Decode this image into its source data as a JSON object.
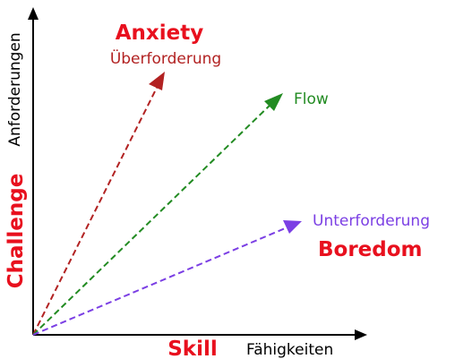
{
  "axes": {
    "x_label_en": "Skill",
    "x_label_de": "Fähigkeiten",
    "y_label_en": "Challenge",
    "y_label_de": "Anforderungen"
  },
  "arrows": [
    {
      "id": "anxiety",
      "label_en": "Anxiety",
      "label_de": "Überforderung",
      "color": "#b22222"
    },
    {
      "id": "flow",
      "label_de": "Flow",
      "color": "#228b22"
    },
    {
      "id": "boredom",
      "label_en": "Boredom",
      "label_de": "Unterforderung",
      "color": "#7b3fe4"
    }
  ],
  "colors": {
    "accent_red": "#e8101e",
    "axis": "#000000"
  }
}
